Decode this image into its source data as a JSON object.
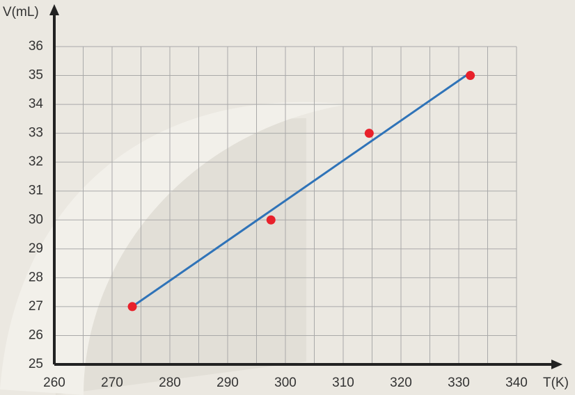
{
  "chart_data": {
    "type": "scatter",
    "x_label": "T(K)",
    "y_label": "V(mL)",
    "x": [
      273.5,
      297.5,
      314.5,
      332
    ],
    "values": [
      27,
      30,
      33,
      35
    ],
    "color": "#e8212b",
    "fit_line": {
      "x": [
        273.5,
        332
      ],
      "values": [
        27,
        35.1
      ],
      "color": "#2f73b8"
    },
    "xlim": [
      260,
      340
    ],
    "xticks": [
      260,
      270,
      280,
      290,
      300,
      310,
      320,
      330,
      340
    ],
    "ylim": [
      25,
      36
    ],
    "yticks": [
      25,
      26,
      27,
      28,
      29,
      30,
      31,
      32,
      33,
      34,
      35,
      36
    ],
    "grid": true
  }
}
